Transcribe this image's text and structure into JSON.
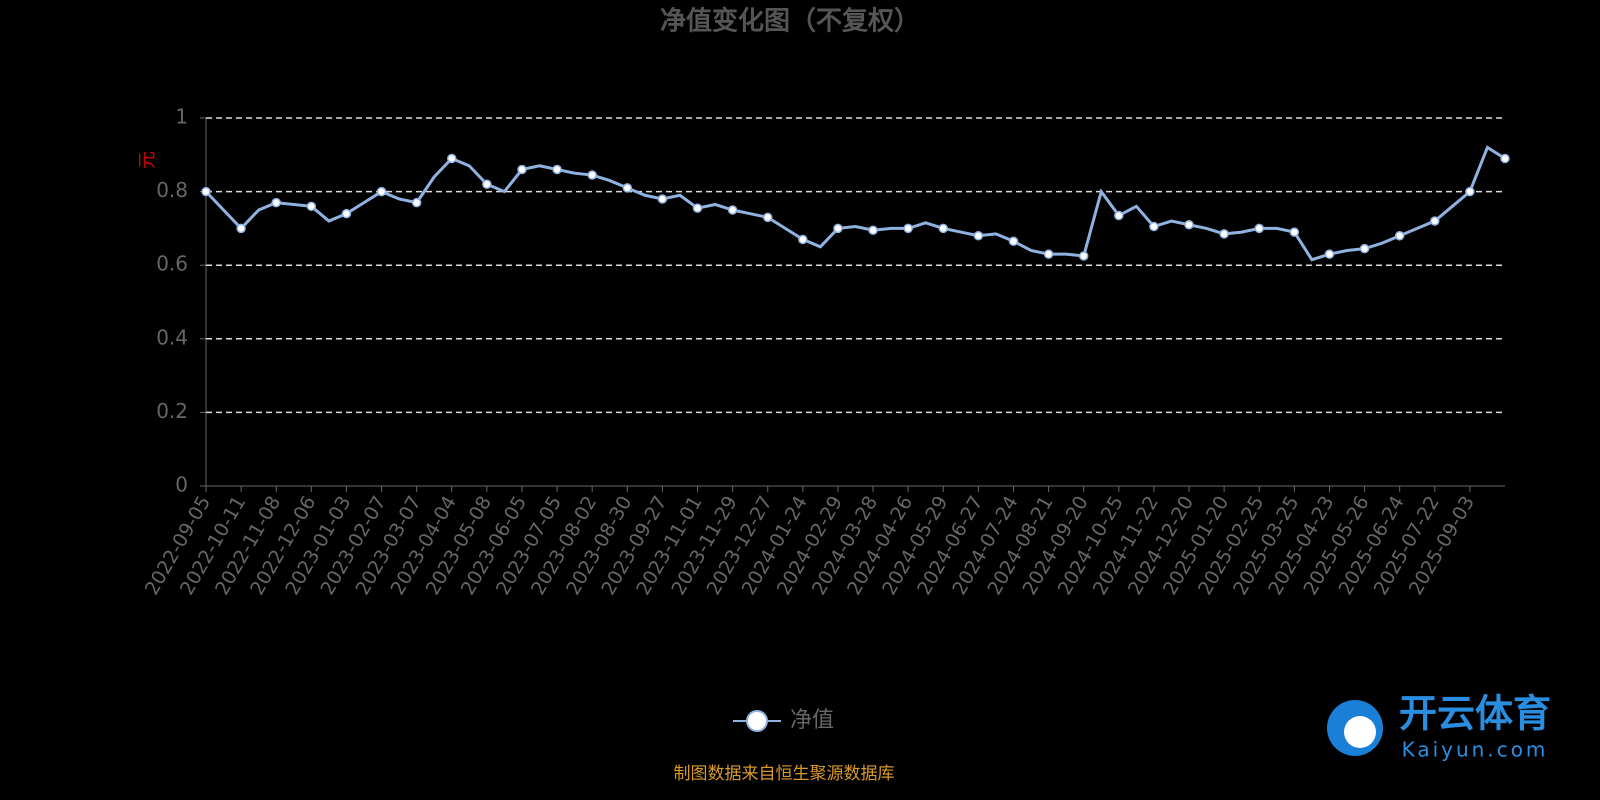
{
  "chart_data": {
    "type": "line",
    "title": "净值变化图（不复权）",
    "y_label": "元",
    "categories": [
      "2022-09-05",
      null,
      "2022-10-11",
      null,
      "2022-11-08",
      null,
      "2022-12-06",
      null,
      "2023-01-03",
      null,
      "2023-02-07",
      null,
      "2023-03-07",
      null,
      "2023-04-04",
      null,
      "2023-05-08",
      null,
      "2023-06-05",
      null,
      "2023-07-05",
      null,
      "2023-08-02",
      null,
      "2023-08-30",
      null,
      "2023-09-27",
      null,
      "2023-11-01",
      null,
      "2023-11-29",
      null,
      "2023-12-27",
      null,
      "2024-01-24",
      null,
      "2024-02-29",
      null,
      "2024-03-28",
      null,
      "2024-04-26",
      null,
      "2024-05-29",
      null,
      "2024-06-27",
      null,
      "2024-07-24",
      null,
      "2024-08-21",
      null,
      "2024-09-20",
      null,
      "2024-10-25",
      null,
      "2024-11-22",
      null,
      "2024-12-20",
      null,
      "2025-01-20",
      null,
      "2025-02-25",
      null,
      "2025-03-25",
      null,
      "2025-04-23",
      null,
      "2025-05-26",
      null,
      "2025-06-24",
      null,
      "2025-07-22",
      null,
      "2025-09-03",
      null,
      null
    ],
    "series": [
      {
        "name": "净值",
        "color": "#8fb2e0",
        "values": [
          0.8,
          0.75,
          0.7,
          0.75,
          0.77,
          0.765,
          0.76,
          0.72,
          0.74,
          0.77,
          0.8,
          0.78,
          0.77,
          0.84,
          0.89,
          0.87,
          0.82,
          0.8,
          0.86,
          0.87,
          0.86,
          0.85,
          0.845,
          0.83,
          0.81,
          0.79,
          0.78,
          0.79,
          0.755,
          0.765,
          0.75,
          0.74,
          0.73,
          0.7,
          0.67,
          0.65,
          0.7,
          0.705,
          0.695,
          0.7,
          0.7,
          0.715,
          0.7,
          0.69,
          0.68,
          0.685,
          0.665,
          0.64,
          0.63,
          0.63,
          0.625,
          0.8,
          0.735,
          0.76,
          0.705,
          0.72,
          0.71,
          0.7,
          0.685,
          0.69,
          0.7,
          0.7,
          0.69,
          0.615,
          0.63,
          0.64,
          0.645,
          0.66,
          0.68,
          0.7,
          0.72,
          0.76,
          0.8,
          0.92,
          0.89
        ]
      }
    ],
    "ylim": [
      0,
      1
    ],
    "yticks": [
      0,
      0.2,
      0.4,
      0.6,
      0.8,
      1
    ],
    "grid": true,
    "source": "制图数据来自恒生聚源数据库",
    "watermark": {
      "brand": "开云体育",
      "url": "Kaiyun.com"
    }
  }
}
